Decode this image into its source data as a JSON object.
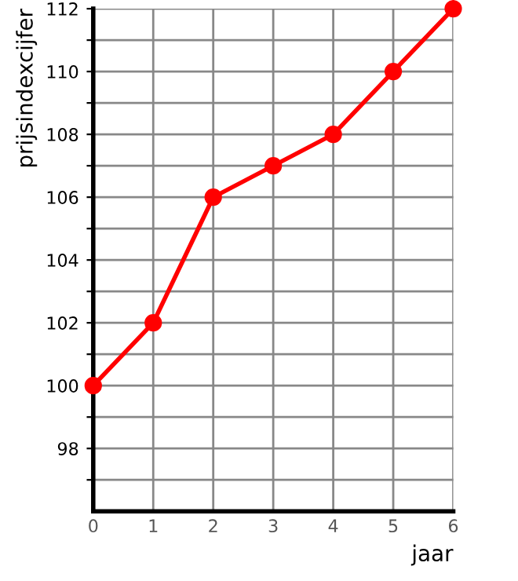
{
  "chart_data": {
    "type": "line",
    "xlabel": "jaar",
    "ylabel": "prijsindexcijfer",
    "x": [
      0,
      1,
      2,
      3,
      4,
      5,
      6
    ],
    "series": [
      {
        "color": "#ff0000",
        "values": [
          100,
          102,
          106,
          107,
          108,
          110,
          112
        ]
      }
    ],
    "xlim": [
      0,
      6
    ],
    "xticks": [
      0,
      1,
      2,
      3,
      4,
      5,
      6
    ],
    "ylim": [
      96,
      112
    ],
    "yticks": [
      {
        "value": 97,
        "label": null
      },
      98,
      {
        "value": 99,
        "label": null
      },
      100,
      {
        "value": 101,
        "label": null
      },
      102,
      {
        "value": 103,
        "label": null
      },
      104,
      {
        "value": 105,
        "label": null
      },
      106,
      {
        "value": 107,
        "label": null
      },
      108,
      {
        "value": 109,
        "label": null
      },
      110,
      {
        "value": 111,
        "label": null
      },
      112
    ],
    "grid": true,
    "marker": "circle",
    "line_style": "solid",
    "legend": false
  }
}
